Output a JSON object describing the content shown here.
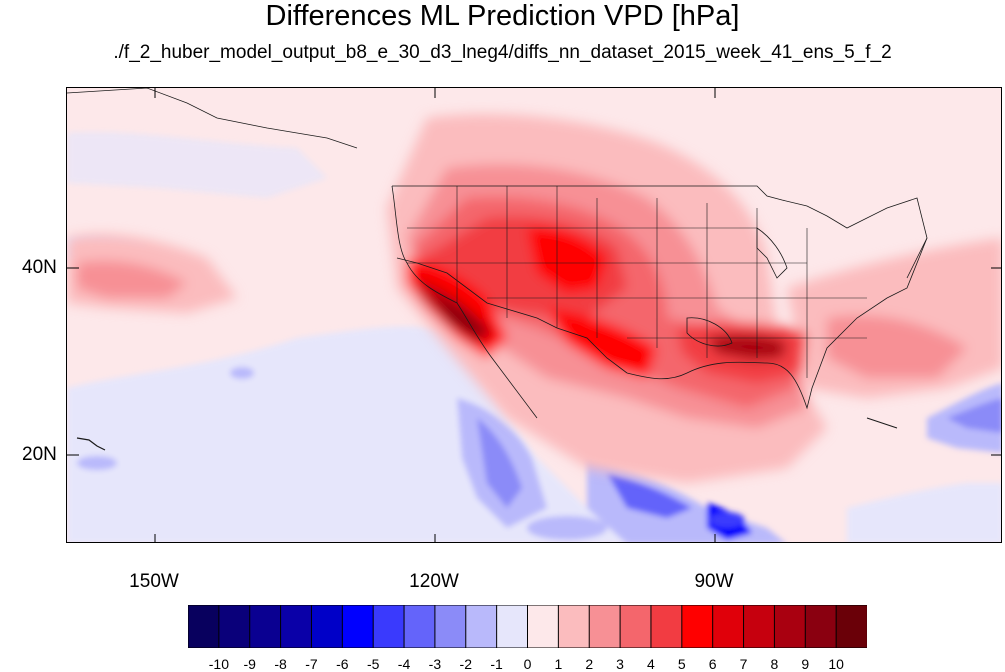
{
  "title": "Differences ML Prediction VPD [hPa]",
  "subtitle": "./f_2_huber_model_output_b8_e_30_d3_lneg4/diffs_nn_dataset_2015_week_41_ens_5_f_2",
  "map": {
    "projection": "cylindrical equidistant",
    "lon_range": [
      -159.5,
      -59.5
    ],
    "lat_range": [
      11,
      59.5
    ],
    "lon_ticks": [
      "150W",
      "120W",
      "90W"
    ],
    "lat_ticks": [
      "40N",
      "20N"
    ],
    "features": [
      "coastlines",
      "US state boundaries",
      "Canada/Mexico borders"
    ]
  },
  "colorbar": {
    "labels": [
      "-10",
      "-9",
      "-8",
      "-7",
      "-6",
      "-5",
      "-4",
      "-3",
      "-2",
      "-1",
      "0",
      "1",
      "2",
      "3",
      "4",
      "5",
      "6",
      "7",
      "8",
      "9",
      "10"
    ],
    "colors": [
      "#08005e",
      "#0a007a",
      "#0a0091",
      "#0a00a8",
      "#0000c8",
      "#0000ff",
      "#3a3afd",
      "#6464fa",
      "#8b8bf8",
      "#b9b9fb",
      "#e6e6fb",
      "#fde8ea",
      "#fbbcbe",
      "#f79095",
      "#f4666c",
      "#f23c42",
      "#ff0000",
      "#e0000a",
      "#c6000e",
      "#a90010",
      "#8a0010",
      "#6a0008"
    ]
  }
}
